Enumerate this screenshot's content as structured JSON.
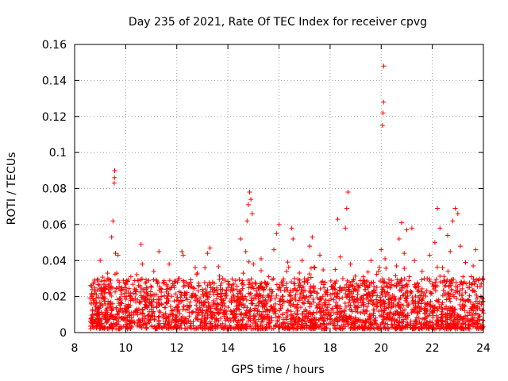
{
  "chart_data": {
    "type": "scatter",
    "title": "Day 235 of 2021, Rate Of TEC Index for receiver cpvg",
    "xlabel": "GPS time / hours",
    "ylabel": "ROTI / TECUs",
    "xlim": [
      8,
      24
    ],
    "ylim": [
      0,
      0.16
    ],
    "xticks": [
      8,
      10,
      12,
      14,
      16,
      18,
      20,
      22,
      24
    ],
    "yticks": [
      0,
      0.02,
      0.04,
      0.06,
      0.08,
      0.1,
      0.12,
      0.14,
      0.16
    ],
    "xtick_labels": [
      "8",
      "10",
      "12",
      "14",
      "16",
      "18",
      "20",
      "22",
      "24"
    ],
    "ytick_labels": [
      "0",
      "0.02",
      "0.04",
      "0.06",
      "0.08",
      "0.1",
      "0.12",
      "0.14",
      "0.16"
    ],
    "grid": true,
    "marker": "+",
    "color": "#ff0000",
    "series": [
      {
        "name": "ROTI",
        "points": [
          [
            8.65,
            0.008
          ],
          [
            8.7,
            0.012
          ],
          [
            8.75,
            0.018
          ],
          [
            8.8,
            0.006
          ],
          [
            8.85,
            0.021
          ],
          [
            8.9,
            0.01
          ],
          [
            8.95,
            0.014
          ],
          [
            9.0,
            0.04
          ],
          [
            9.05,
            0.025
          ],
          [
            9.1,
            0.015
          ],
          [
            9.15,
            0.009
          ],
          [
            9.2,
            0.019
          ],
          [
            9.25,
            0.012
          ],
          [
            9.3,
            0.03
          ],
          [
            9.35,
            0.016
          ],
          [
            9.4,
            0.022
          ],
          [
            9.45,
            0.053
          ],
          [
            9.5,
            0.062
          ],
          [
            9.55,
            0.083
          ],
          [
            9.56,
            0.086
          ],
          [
            9.57,
            0.09
          ],
          [
            9.6,
            0.044
          ],
          [
            9.65,
            0.033
          ],
          [
            9.7,
            0.043
          ],
          [
            9.75,
            0.028
          ],
          [
            9.8,
            0.018
          ],
          [
            9.85,
            0.025
          ],
          [
            9.9,
            0.011
          ],
          [
            9.95,
            0.02
          ],
          [
            10.0,
            0.015
          ],
          [
            10.1,
            0.022
          ],
          [
            10.2,
            0.031
          ],
          [
            10.3,
            0.018
          ],
          [
            10.4,
            0.012
          ],
          [
            10.5,
            0.026
          ],
          [
            10.6,
            0.049
          ],
          [
            10.65,
            0.038
          ],
          [
            10.7,
            0.024
          ],
          [
            10.8,
            0.017
          ],
          [
            10.9,
            0.029
          ],
          [
            11.0,
            0.013
          ],
          [
            11.1,
            0.034
          ],
          [
            11.2,
            0.021
          ],
          [
            11.3,
            0.045
          ],
          [
            11.4,
            0.016
          ],
          [
            11.5,
            0.028
          ],
          [
            11.6,
            0.019
          ],
          [
            11.7,
            0.038
          ],
          [
            11.8,
            0.012
          ],
          [
            11.9,
            0.025
          ],
          [
            12.0,
            0.018
          ],
          [
            12.1,
            0.03
          ],
          [
            12.2,
            0.045
          ],
          [
            12.25,
            0.043
          ],
          [
            12.3,
            0.022
          ],
          [
            12.4,
            0.015
          ],
          [
            12.5,
            0.027
          ],
          [
            12.6,
            0.011
          ],
          [
            12.7,
            0.02
          ],
          [
            12.8,
            0.033
          ],
          [
            12.9,
            0.014
          ],
          [
            13.0,
            0.024
          ],
          [
            13.1,
            0.036
          ],
          [
            13.2,
            0.044
          ],
          [
            13.3,
            0.047
          ],
          [
            13.4,
            0.028
          ],
          [
            13.5,
            0.016
          ],
          [
            13.6,
            0.021
          ],
          [
            13.7,
            0.013
          ],
          [
            13.8,
            0.03
          ],
          [
            13.9,
            0.019
          ],
          [
            14.0,
            0.025
          ],
          [
            14.1,
            0.012
          ],
          [
            14.2,
            0.018
          ],
          [
            14.3,
            0.029
          ],
          [
            14.4,
            0.015
          ],
          [
            14.5,
            0.052
          ],
          [
            14.6,
            0.033
          ],
          [
            14.7,
            0.045
          ],
          [
            14.75,
            0.062
          ],
          [
            14.8,
            0.071
          ],
          [
            14.85,
            0.078
          ],
          [
            14.9,
            0.074
          ],
          [
            14.95,
            0.066
          ],
          [
            15.0,
            0.038
          ],
          [
            15.1,
            0.027
          ],
          [
            15.2,
            0.019
          ],
          [
            15.3,
            0.041
          ],
          [
            15.4,
            0.024
          ],
          [
            15.5,
            0.016
          ],
          [
            15.6,
            0.031
          ],
          [
            15.7,
            0.022
          ],
          [
            15.8,
            0.046
          ],
          [
            15.9,
            0.055
          ],
          [
            16.0,
            0.06
          ],
          [
            16.1,
            0.028
          ],
          [
            16.2,
            0.017
          ],
          [
            16.3,
            0.034
          ],
          [
            16.4,
            0.021
          ],
          [
            16.5,
            0.058
          ],
          [
            16.55,
            0.052
          ],
          [
            16.6,
            0.03
          ],
          [
            16.7,
            0.014
          ],
          [
            16.8,
            0.025
          ],
          [
            16.9,
            0.04
          ],
          [
            17.0,
            0.019
          ],
          [
            17.1,
            0.029
          ],
          [
            17.2,
            0.048
          ],
          [
            17.3,
            0.053
          ],
          [
            17.4,
            0.036
          ],
          [
            17.5,
            0.022
          ],
          [
            17.6,
            0.043
          ],
          [
            17.7,
            0.015
          ],
          [
            17.8,
            0.028
          ],
          [
            17.9,
            0.021
          ],
          [
            18.0,
            0.011
          ],
          [
            18.1,
            0.024
          ],
          [
            18.2,
            0.035
          ],
          [
            18.3,
            0.063
          ],
          [
            18.4,
            0.042
          ],
          [
            18.5,
            0.03
          ],
          [
            18.6,
            0.058
          ],
          [
            18.65,
            0.069
          ],
          [
            18.7,
            0.078
          ],
          [
            18.8,
            0.038
          ],
          [
            18.9,
            0.02
          ],
          [
            19.0,
            0.014
          ],
          [
            19.1,
            0.026
          ],
          [
            19.2,
            0.018
          ],
          [
            19.3,
            0.031
          ],
          [
            19.4,
            0.012
          ],
          [
            19.5,
            0.022
          ],
          [
            19.6,
            0.04
          ],
          [
            19.7,
            0.028
          ],
          [
            19.8,
            0.016
          ],
          [
            19.9,
            0.034
          ],
          [
            20.0,
            0.046
          ],
          [
            20.05,
            0.115
          ],
          [
            20.07,
            0.122
          ],
          [
            20.09,
            0.128
          ],
          [
            20.1,
            0.148
          ],
          [
            20.15,
            0.041
          ],
          [
            20.2,
            0.022
          ],
          [
            20.3,
            0.015
          ],
          [
            20.4,
            0.029
          ],
          [
            20.5,
            0.019
          ],
          [
            20.6,
            0.037
          ],
          [
            20.7,
            0.052
          ],
          [
            20.8,
            0.061
          ],
          [
            20.9,
            0.044
          ],
          [
            21.0,
            0.057
          ],
          [
            21.1,
            0.031
          ],
          [
            21.2,
            0.058
          ],
          [
            21.3,
            0.04
          ],
          [
            21.4,
            0.025
          ],
          [
            21.5,
            0.018
          ],
          [
            21.6,
            0.034
          ],
          [
            21.7,
            0.022
          ],
          [
            21.8,
            0.03
          ],
          [
            21.9,
            0.043
          ],
          [
            22.0,
            0.027
          ],
          [
            22.1,
            0.05
          ],
          [
            22.2,
            0.069
          ],
          [
            22.3,
            0.058
          ],
          [
            22.4,
            0.036
          ],
          [
            22.5,
            0.021
          ],
          [
            22.6,
            0.054
          ],
          [
            22.7,
            0.045
          ],
          [
            22.8,
            0.062
          ],
          [
            22.9,
            0.069
          ],
          [
            23.0,
            0.066
          ],
          [
            23.1,
            0.048
          ],
          [
            23.2,
            0.031
          ],
          [
            23.3,
            0.039
          ],
          [
            23.4,
            0.025
          ],
          [
            23.5,
            0.017
          ],
          [
            23.6,
            0.037
          ],
          [
            23.7,
            0.046
          ],
          [
            23.8,
            0.029
          ],
          [
            23.9,
            0.02
          ],
          [
            23.95,
            0.012
          ]
        ]
      }
    ],
    "background_density": {
      "description": "dense band of ROTI values between 0 and ~0.03 over 8.6-24 h",
      "x_range": [
        8.6,
        24.0
      ],
      "y_floor": 0.002,
      "y_base_max": 0.028
    }
  }
}
